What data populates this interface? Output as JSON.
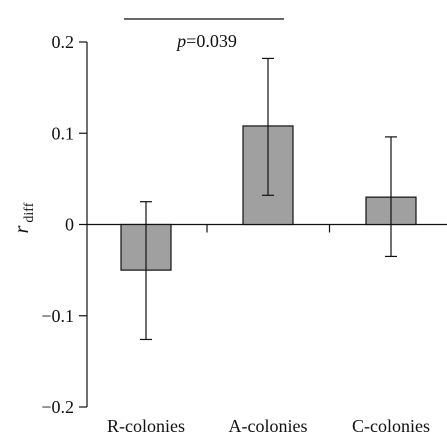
{
  "chart_data": {
    "type": "bar",
    "categories": [
      "R-colonies",
      "A-colonies",
      "C-colonies"
    ],
    "values": [
      -0.05,
      0.108,
      0.03
    ],
    "error_bars": [
      {
        "low": -0.126,
        "high": 0.025
      },
      {
        "low": 0.032,
        "high": 0.182
      },
      {
        "low": -0.035,
        "high": 0.096
      }
    ],
    "ylabel": "r",
    "ylabel_subscript": "diff",
    "ylim": [
      -0.2,
      0.2
    ],
    "yticks": [
      0.2,
      0.1,
      0,
      -0.1,
      -0.2
    ],
    "ytick_labels": [
      "0.2",
      "0.1",
      "0",
      "−0.1",
      "−0.2"
    ],
    "bar_color": "#a0a0a0",
    "grid": false,
    "annotation": {
      "text_italic": "p",
      "text_rest": "=0.039",
      "between": [
        "R-colonies",
        "A-colonies"
      ]
    }
  }
}
